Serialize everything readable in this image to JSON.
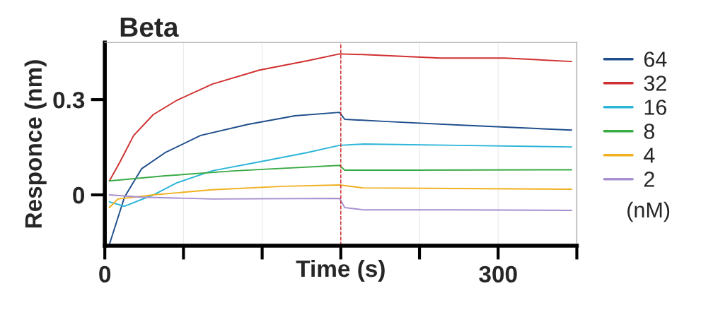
{
  "chart_data": {
    "type": "line",
    "title": "Beta",
    "xlabel": "Time (s)",
    "ylabel": "Responce (nm)",
    "legend_title": "(nM)",
    "legend": "right",
    "xlim": [
      0,
      360
    ],
    "ylim": [
      -0.16,
      0.48
    ],
    "xticks": [
      0,
      {
        "value": 60,
        "label": null
      },
      {
        "value": 120,
        "label": null
      },
      {
        "value": 180,
        "label": null
      },
      {
        "value": 240,
        "label": null
      },
      300,
      {
        "value": 360,
        "label": null
      }
    ],
    "yticks": [
      0,
      0.3
    ],
    "grid": "x",
    "line_style": "solid",
    "marker": "none",
    "ref_lines": [
      {
        "axis": "x",
        "value": 180,
        "label": null,
        "color": "#d02020",
        "line_style": "dashed"
      }
    ],
    "series": [
      {
        "name": "64",
        "color": "#1f4e8c",
        "x": [
          3.5,
          15,
          28,
          46,
          73,
          109,
          145,
          179,
          183,
          215,
          269,
          356
        ],
        "values": [
          -0.156,
          -0.007,
          0.082,
          0.133,
          0.187,
          0.222,
          0.249,
          0.26,
          0.238,
          0.231,
          0.22,
          0.204
        ]
      },
      {
        "name": "32",
        "color": "#d03030",
        "x": [
          3.5,
          11.6,
          22,
          37,
          55,
          82,
          118,
          154,
          179,
          197,
          256,
          305,
          356
        ],
        "values": [
          0.044,
          0.104,
          0.187,
          0.253,
          0.298,
          0.349,
          0.393,
          0.422,
          0.444,
          0.442,
          0.431,
          0.431,
          0.42
        ]
      },
      {
        "name": "16",
        "color": "#2bb5d8",
        "x": [
          3.5,
          15,
          37,
          55,
          82,
          118,
          154,
          179,
          197,
          269,
          356
        ],
        "values": [
          -0.022,
          -0.036,
          0.0,
          0.038,
          0.076,
          0.104,
          0.133,
          0.156,
          0.16,
          0.156,
          0.151
        ]
      },
      {
        "name": "8",
        "color": "#3aaa45",
        "x": [
          3.5,
          46,
          100,
          179,
          183,
          233,
          356
        ],
        "values": [
          0.044,
          0.06,
          0.076,
          0.093,
          0.078,
          0.078,
          0.079
        ]
      },
      {
        "name": "4",
        "color": "#f0b020",
        "x": [
          3.5,
          10,
          37,
          82,
          136,
          179,
          197,
          269,
          356
        ],
        "values": [
          -0.04,
          -0.013,
          0.0,
          0.016,
          0.027,
          0.031,
          0.022,
          0.02,
          0.018
        ]
      },
      {
        "name": "2",
        "color": "#a78fd0",
        "x": [
          3.5,
          28,
          82,
          179,
          183,
          197,
          269,
          356
        ],
        "values": [
          0.0,
          -0.007,
          -0.013,
          -0.011,
          -0.04,
          -0.047,
          -0.047,
          -0.049
        ]
      }
    ]
  }
}
